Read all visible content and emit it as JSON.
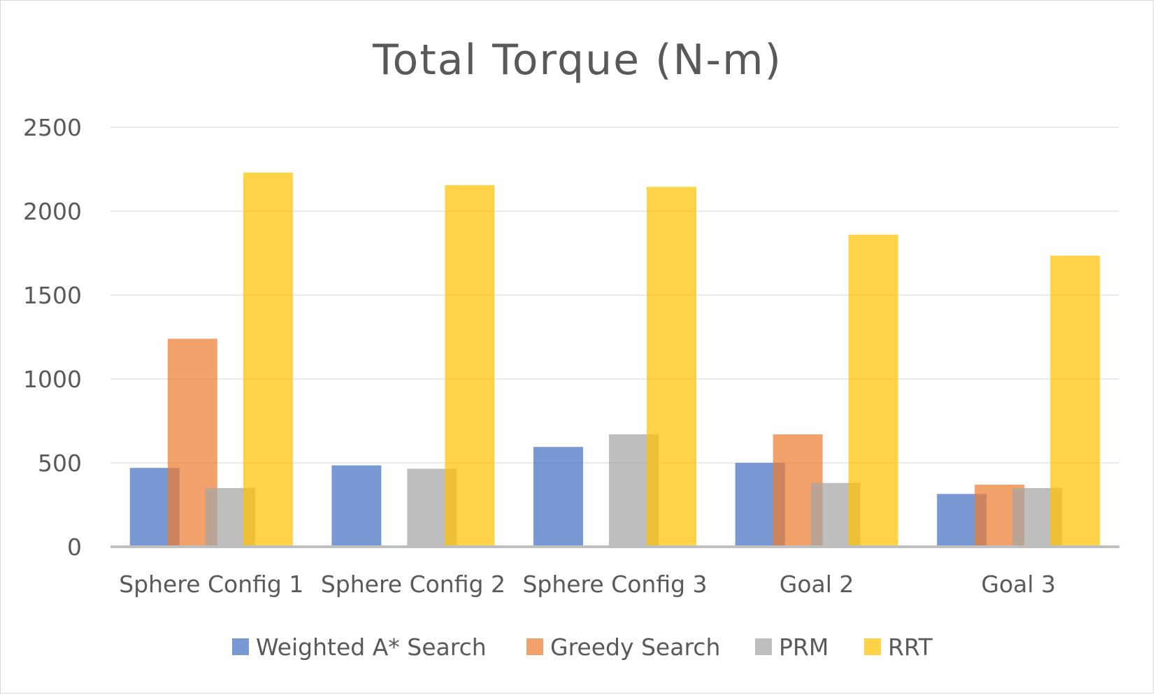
{
  "chart_data": {
    "type": "bar",
    "title": "Total Torque (N-m)",
    "xlabel": "",
    "ylabel": "",
    "ylim": [
      0,
      2500
    ],
    "yticks": [
      0,
      500,
      1000,
      1500,
      2000,
      2500
    ],
    "grid": true,
    "legend_position": "bottom",
    "categories": [
      "Sphere Config 1",
      "Sphere Config 2",
      "Sphere Config 3",
      "Goal 2",
      "Goal 3"
    ],
    "series": [
      {
        "name": "Weighted A* Search",
        "color": "#4472C4",
        "values": [
          470,
          485,
          595,
          500,
          315
        ]
      },
      {
        "name": "Greedy Search",
        "color": "#ED7D31",
        "values": [
          1240,
          0,
          0,
          670,
          370
        ]
      },
      {
        "name": "PRM",
        "color": "#A5A5A5",
        "values": [
          350,
          465,
          670,
          380,
          350
        ]
      },
      {
        "name": "RRT",
        "color": "#FFC000",
        "values": [
          2230,
          2155,
          2145,
          1860,
          1735
        ]
      }
    ]
  }
}
